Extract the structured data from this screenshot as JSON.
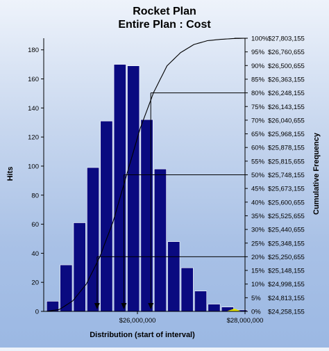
{
  "chart_data": {
    "type": "bar",
    "title": "Rocket Plan",
    "subtitle": "Entire Plan : Cost",
    "xlabel": "Distribution (start of interval)",
    "ylabel": "Hits",
    "y2label": "Cumulative Frequency",
    "ylim": [
      0,
      188
    ],
    "yticks": [
      "0",
      "20",
      "40",
      "60",
      "80",
      "100",
      "120",
      "140",
      "160",
      "180"
    ],
    "xlim": [
      24258155,
      28000000
    ],
    "xtick_labels": [
      {
        "value": 26000000,
        "label": "$26,000,000"
      },
      {
        "value": 28000000,
        "label": "$28,000,000"
      }
    ],
    "bin_width": 250000,
    "bins": [
      {
        "x": 24300000,
        "hits": 7
      },
      {
        "x": 24550000,
        "hits": 32
      },
      {
        "x": 24800000,
        "hits": 61
      },
      {
        "x": 25050000,
        "hits": 99
      },
      {
        "x": 25300000,
        "hits": 131
      },
      {
        "x": 25550000,
        "hits": 170
      },
      {
        "x": 25800000,
        "hits": 169
      },
      {
        "x": 26050000,
        "hits": 132
      },
      {
        "x": 26300000,
        "hits": 98
      },
      {
        "x": 26550000,
        "hits": 48
      },
      {
        "x": 26800000,
        "hits": 30
      },
      {
        "x": 27050000,
        "hits": 14
      },
      {
        "x": 27300000,
        "hits": 5
      },
      {
        "x": 27550000,
        "hits": 3
      },
      {
        "x": 27800000,
        "hits": 1
      }
    ],
    "percentile_labels": [
      {
        "pct": "0%",
        "value": "$24,258,155"
      },
      {
        "pct": "5%",
        "value": "$24,813,155"
      },
      {
        "pct": "10%",
        "value": "$24,998,155"
      },
      {
        "pct": "15%",
        "value": "$25,148,155"
      },
      {
        "pct": "20%",
        "value": "$25,250,655"
      },
      {
        "pct": "25%",
        "value": "$25,348,155"
      },
      {
        "pct": "30%",
        "value": "$25,440,655"
      },
      {
        "pct": "35%",
        "value": "$25,525,655"
      },
      {
        "pct": "40%",
        "value": "$25,600,655"
      },
      {
        "pct": "45%",
        "value": "$25,673,155"
      },
      {
        "pct": "50%",
        "value": "$25,748,155"
      },
      {
        "pct": "55%",
        "value": "$25,815,655"
      },
      {
        "pct": "60%",
        "value": "$25,878,155"
      },
      {
        "pct": "65%",
        "value": "$25,968,155"
      },
      {
        "pct": "70%",
        "value": "$26,040,655"
      },
      {
        "pct": "75%",
        "value": "$26,143,155"
      },
      {
        "pct": "80%",
        "value": "$26,248,155"
      },
      {
        "pct": "85%",
        "value": "$26,363,155"
      },
      {
        "pct": "90%",
        "value": "$26,500,655"
      },
      {
        "pct": "95%",
        "value": "$26,760,655"
      },
      {
        "pct": "100%",
        "value": "$27,803,155"
      }
    ],
    "markers": [
      {
        "pct": 20,
        "value": 25250655
      },
      {
        "pct": 50,
        "value": 25748155
      },
      {
        "pct": 80,
        "value": 26248155
      }
    ],
    "grid": false,
    "colors": {
      "bar": "#0a0a80",
      "bar_edge": "#ffffff",
      "curve": "#000000",
      "marker": "#000000",
      "max_highlight": "#e6e600"
    }
  }
}
